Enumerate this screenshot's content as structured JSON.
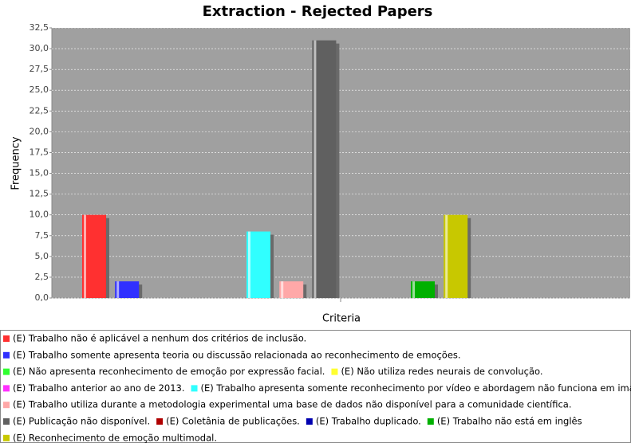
{
  "chart_data": {
    "type": "bar",
    "title": "Extraction - Rejected Papers",
    "x_label": "Criteria",
    "y_label": "Frequency",
    "categories": [
      null
    ],
    "series": [
      {
        "name": "(E) Trabalho não é aplicável a nenhum dos critérios de inclusão.",
        "color": "#ff3030",
        "values": [
          10
        ]
      },
      {
        "name": "(E) Trabalho somente apresenta teoria ou discussão relacionada ao reconhecimento de emoções.",
        "color": "#3030ff",
        "values": [
          2
        ]
      },
      {
        "name": "(E) Não apresenta reconhecimento de emoção por expressão facial.",
        "color": "#30ff30",
        "values": [
          0
        ]
      },
      {
        "name": "(E) Não utiliza redes neurais de convolução.",
        "color": "#ffff30",
        "values": [
          0
        ]
      },
      {
        "name": "(E) Trabalho anterior ao ano de 2013.",
        "color": "#ff30ff",
        "values": [
          0
        ]
      },
      {
        "name": "(E) Trabalho apresenta somente reconhecimento por vídeo e abordagem não funciona em imagem.",
        "color": "#30ffff",
        "values": [
          8
        ]
      },
      {
        "name": "(E) Trabalho utiliza durante a metodologia experimental uma base de dados não disponível para a comunidade científica.",
        "color": "#ffa8a8",
        "values": [
          2
        ]
      },
      {
        "name": "(E) Publicação não disponível.",
        "color": "#606060",
        "values": [
          31
        ]
      },
      {
        "name": "(E) Coletânia de publicações.",
        "color": "#b00000",
        "values": [
          0
        ]
      },
      {
        "name": "(E) Trabalho duplicado.",
        "color": "#0000b0",
        "values": [
          0
        ]
      },
      {
        "name": "(E) Trabalho não está em inglês",
        "color": "#00b000",
        "values": [
          2
        ]
      },
      {
        "name": "(E) Reconhecimento de emoção multimodal.",
        "color": "#c8c800",
        "values": [
          10
        ]
      }
    ],
    "ylim": [
      0,
      32.5
    ],
    "yticks": [
      {
        "value": 0,
        "label": "0,0"
      },
      {
        "value": 2.5,
        "label": "2,5"
      },
      {
        "value": 5,
        "label": "5,0"
      },
      {
        "value": 7.5,
        "label": "7,5"
      },
      {
        "value": 10,
        "label": "10,0"
      },
      {
        "value": 12.5,
        "label": "12,5"
      },
      {
        "value": 15,
        "label": "15,0"
      },
      {
        "value": 17.5,
        "label": "17,5"
      },
      {
        "value": 20,
        "label": "20,0"
      },
      {
        "value": 22.5,
        "label": "22,5"
      },
      {
        "value": 25,
        "label": "25,0"
      },
      {
        "value": 27.5,
        "label": "27,5"
      },
      {
        "value": 30,
        "label": "30,0"
      },
      {
        "value": 32.5,
        "label": "32,5"
      }
    ],
    "grid": true
  }
}
